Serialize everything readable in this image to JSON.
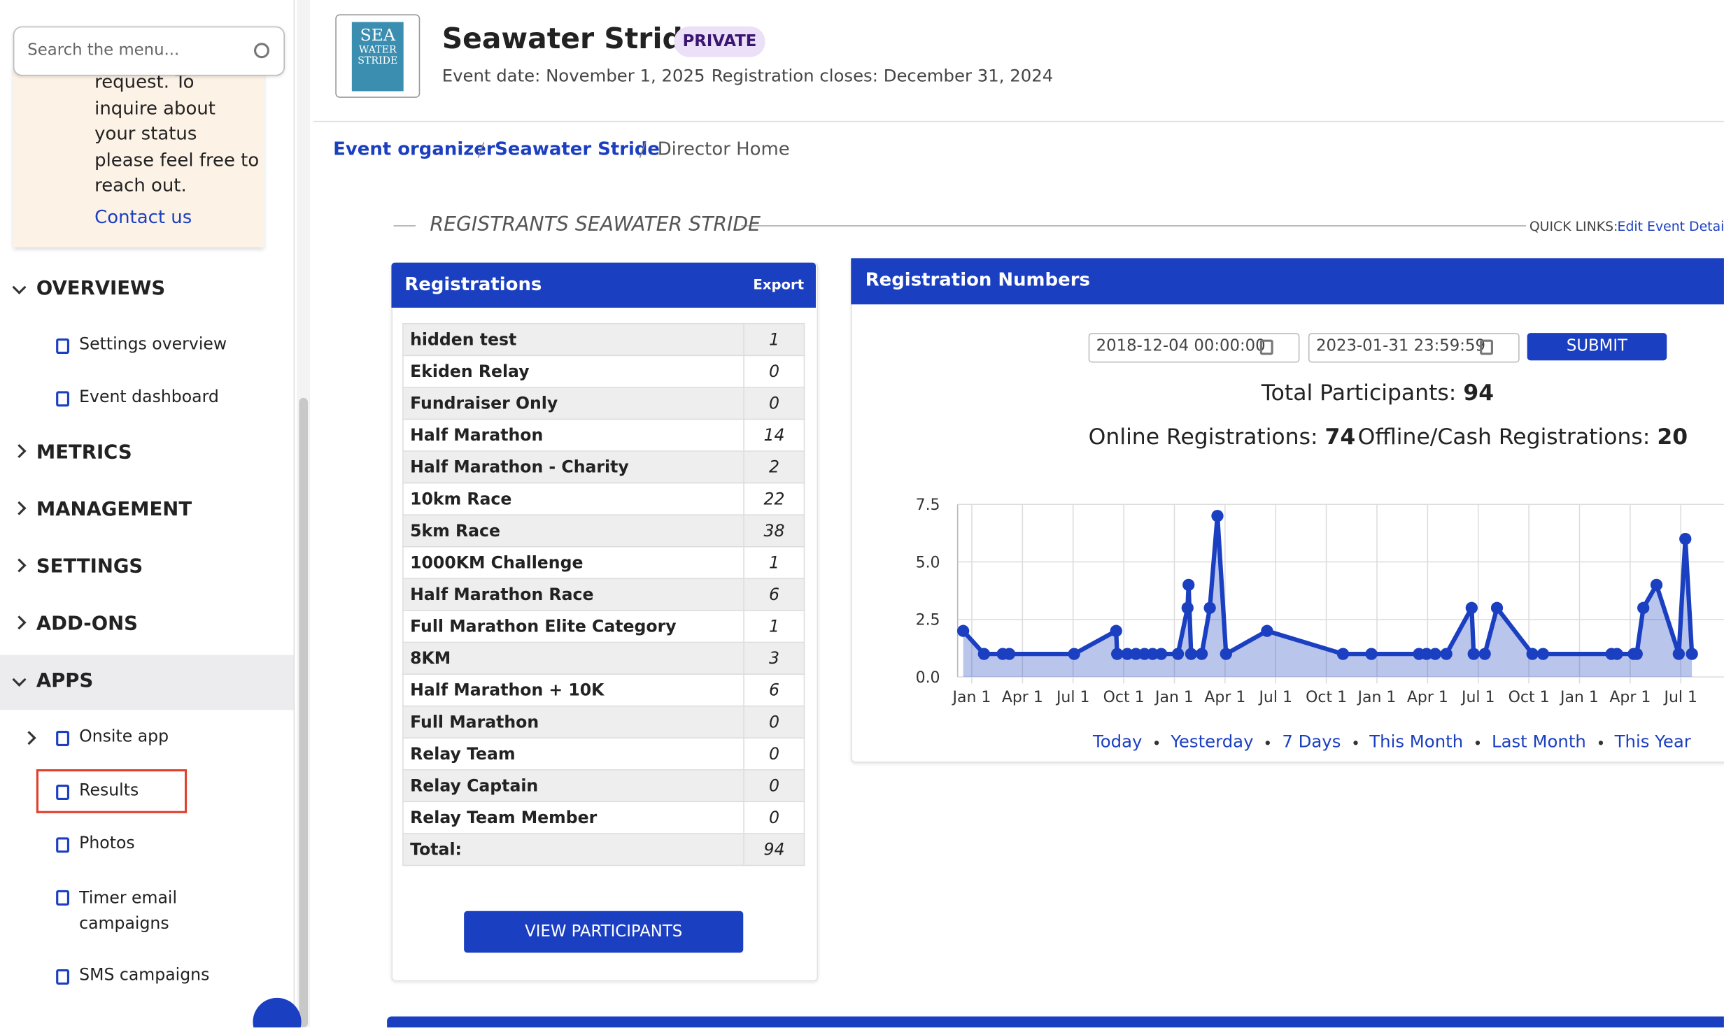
{
  "sidebar": {
    "search_placeholder": "Search the menu...",
    "notice_text": "request. To inquire about your status please feel free to reach out.",
    "contact_link": "Contact us",
    "sections": [
      "OVERVIEWS",
      "METRICS",
      "MANAGEMENT",
      "SETTINGS",
      "ADD-ONS",
      "APPS"
    ],
    "overview_items": [
      "Settings overview",
      "Event dashboard"
    ],
    "app_items": [
      "Onsite app",
      "Results",
      "Photos",
      "Timer email campaigns",
      "SMS campaigns"
    ]
  },
  "header": {
    "logo_text": [
      "SEA",
      "WATER",
      "STRIDE"
    ],
    "title": "Seawater Stride",
    "badge": "PRIVATE",
    "event_date": "Event date: November 1, 2025",
    "registration_closes": "Registration closes: December 31, 2024"
  },
  "breadcrumb": [
    "Event organizer",
    "Seawater Stride",
    "Director Home"
  ],
  "section_title": "REGISTRANTS SEAWATER STRIDE",
  "quick_links_label": "QUICK LINKS:",
  "quick_links_link": "Edit Event Details",
  "registrations": {
    "title": "Registrations",
    "export": "Export",
    "rows": [
      [
        "hidden test",
        "1"
      ],
      [
        "Ekiden Relay",
        "0"
      ],
      [
        "Fundraiser Only",
        "0"
      ],
      [
        "Half Marathon",
        "14"
      ],
      [
        "Half Marathon - Charity",
        "2"
      ],
      [
        "10km Race",
        "22"
      ],
      [
        "5km Race",
        "38"
      ],
      [
        "1000KM Challenge",
        "1"
      ],
      [
        "Half Marathon Race",
        "6"
      ],
      [
        "Full Marathon Elite Category",
        "1"
      ],
      [
        "8KM",
        "3"
      ],
      [
        "Half Marathon + 10K",
        "6"
      ],
      [
        "Full Marathon",
        "0"
      ],
      [
        "Relay Team",
        "0"
      ],
      [
        "Relay Captain",
        "0"
      ],
      [
        "Relay Team Member",
        "0"
      ],
      [
        "Total:",
        "94"
      ]
    ],
    "button": "VIEW PARTICIPANTS"
  },
  "numbers": {
    "title": "Registration Numbers",
    "date_from": "2018-12-04 00:00:00",
    "date_to": "2023-01-31 23:59:59",
    "submit": "SUBMIT",
    "total_label": "Total Participants:",
    "total_value": "94",
    "online_label": "Online Registrations:",
    "online_value": "74",
    "offline_label": "Offline/Cash Registrations:",
    "offline_value": "20",
    "range_links": [
      "Today",
      "Yesterday",
      "7 Days",
      "This Month",
      "Last Month",
      "This Year"
    ]
  },
  "chart_data": {
    "type": "line",
    "x": [
      -0.17,
      0.24,
      0.61,
      0.74,
      2.02,
      2.85,
      2.87,
      3.07,
      3.24,
      3.41,
      3.57,
      3.74,
      4.07,
      4.26,
      4.28,
      4.33,
      4.54,
      4.7,
      4.85,
      5.02,
      5.83,
      7.33,
      7.89,
      8.83,
      8.98,
      9.15,
      9.37,
      9.87,
      9.91,
      10.13,
      10.37,
      11.07,
      11.28,
      12.63,
      12.74,
      13.07,
      13.13,
      13.26,
      13.52,
      13.96,
      14.09,
      14.22
    ],
    "series": [
      {
        "color": "#1b3fc1",
        "values": [
          2,
          1,
          1,
          1,
          1,
          2,
          1,
          1,
          1,
          1,
          1,
          1,
          1,
          3,
          4,
          1,
          1,
          3,
          7,
          1,
          2,
          1,
          1,
          1,
          1,
          1,
          1,
          3,
          1,
          1,
          3,
          1,
          1,
          1,
          1,
          1,
          1,
          3,
          4,
          1,
          6,
          1
        ]
      }
    ],
    "xlim": [
      -0.28,
      15.2
    ],
    "xticks": [
      {
        "value": 0,
        "label": "Jan 1"
      },
      {
        "value": 1,
        "label": "Apr 1"
      },
      {
        "value": 2,
        "label": "Jul 1"
      },
      {
        "value": 3,
        "label": "Oct 1"
      },
      {
        "value": 4,
        "label": "Jan 1"
      },
      {
        "value": 5,
        "label": "Apr 1"
      },
      {
        "value": 6,
        "label": "Jul 1"
      },
      {
        "value": 7,
        "label": "Oct 1"
      },
      {
        "value": 8,
        "label": "Jan 1"
      },
      {
        "value": 9,
        "label": "Apr 1"
      },
      {
        "value": 10,
        "label": "Jul 1"
      },
      {
        "value": 11,
        "label": "Oct 1"
      },
      {
        "value": 12,
        "label": "Jan 1"
      },
      {
        "value": 13,
        "label": "Apr 1"
      },
      {
        "value": 14,
        "label": "Jul 1"
      }
    ],
    "ylim": [
      0,
      7.5
    ],
    "yticks": [
      {
        "value": 0,
        "label": "0.0"
      },
      2.5,
      {
        "value": 5,
        "label": "5.0"
      },
      {
        "value": 7.5,
        "label": "7.5"
      }
    ],
    "grid": true
  }
}
